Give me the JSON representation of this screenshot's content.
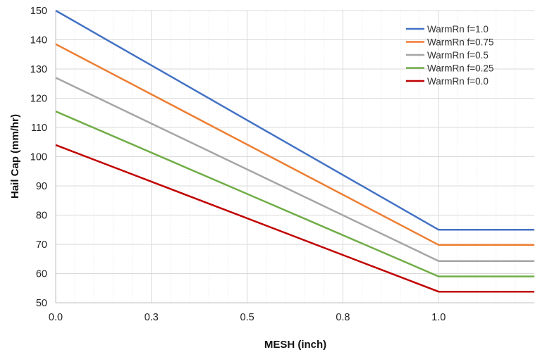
{
  "chart_data": {
    "type": "line",
    "title": "",
    "xlabel": "MESH (inch)",
    "ylabel": "Hail Cap (mm/hr)",
    "xlim": [
      0,
      1.25
    ],
    "ylim": [
      50,
      150
    ],
    "x_ticks": [
      0.0,
      0.25,
      0.5,
      0.75,
      1.0
    ],
    "x_tick_labels": [
      "0.0",
      "0.3",
      "0.5",
      "0.8",
      "1.0"
    ],
    "y_ticks": [
      50,
      60,
      70,
      80,
      90,
      100,
      110,
      120,
      130,
      140,
      150
    ],
    "y_tick_labels": [
      "50",
      "60",
      "70",
      "80",
      "90",
      "100",
      "110",
      "120",
      "130",
      "140",
      "150"
    ],
    "grid": true,
    "legend_position": "top-right",
    "series": [
      {
        "name": "WarmRn f=1.0",
        "color": "#4472C4",
        "x": [
          0,
          1.0,
          1.25
        ],
        "y": [
          150,
          75,
          75
        ]
      },
      {
        "name": "WarmRn f=0.75",
        "color": "#ED7D31",
        "x": [
          0,
          1.0,
          1.25
        ],
        "y": [
          138.5,
          69.8,
          69.8
        ]
      },
      {
        "name": "WarmRn f=0.5",
        "color": "#A5A5A5",
        "x": [
          0,
          1.0,
          1.25
        ],
        "y": [
          127,
          64.3,
          64.3
        ]
      },
      {
        "name": "WarmRn f=0.25",
        "color": "#70AD47",
        "x": [
          0,
          1.0,
          1.25
        ],
        "y": [
          115.5,
          59,
          59
        ]
      },
      {
        "name": "WarmRn f=0.0",
        "color": "#C00000",
        "x": [
          0,
          1.0,
          1.25
        ],
        "y": [
          104,
          53.8,
          53.8
        ]
      }
    ],
    "colors": {
      "grid_major": "#d9d9d9",
      "grid_minor": "#eeeeee"
    }
  }
}
